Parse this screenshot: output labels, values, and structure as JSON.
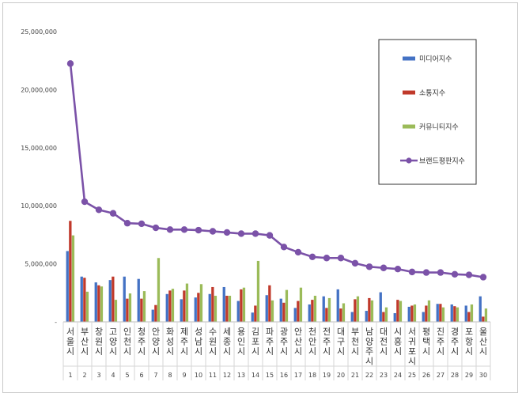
{
  "chart_data": {
    "type": "bar",
    "title": "",
    "xlabel": "",
    "ylabel": "",
    "ylim": [
      0,
      25000000
    ],
    "yticks": [
      "-",
      "5,000,000",
      "10,000,000",
      "15,000,000",
      "20,000,000",
      "25,000,000"
    ],
    "grid": false,
    "legend_position": "top-right",
    "categories": [
      "서울시",
      "부산시",
      "창원시",
      "고양시",
      "인천시",
      "청주시",
      "안양시",
      "화성시",
      "제주시",
      "성남시",
      "수원시",
      "세종시",
      "용인시",
      "김포시",
      "파주시",
      "광주시",
      "안산시",
      "천안시",
      "전주시",
      "대구시",
      "부천시",
      "남양주시",
      "대전시",
      "시흥시",
      "서귀포시",
      "평택시",
      "진주시",
      "경주시",
      "포항시",
      "울산시"
    ],
    "ranks": [
      "1",
      "2",
      "3",
      "4",
      "5",
      "6",
      "7",
      "8",
      "9",
      "10",
      "11",
      "12",
      "13",
      "14",
      "15",
      "16",
      "17",
      "18",
      "19",
      "20",
      "21",
      "22",
      "23",
      "24",
      "25",
      "26",
      "27",
      "28",
      "29",
      "30"
    ],
    "series": [
      {
        "name": "미디어지수",
        "kind": "bar",
        "color": "#4472C4",
        "values": [
          6100000,
          3900000,
          3400000,
          3600000,
          3900000,
          3700000,
          1050000,
          2400000,
          1950000,
          2100000,
          2400000,
          3000000,
          1800000,
          800000,
          2300000,
          2000000,
          1200000,
          1500000,
          2200000,
          2800000,
          850000,
          950000,
          2550000,
          750000,
          1300000,
          850000,
          1550000,
          1500000,
          1400000,
          2200000
        ]
      },
      {
        "name": "소통지수",
        "kind": "bar",
        "color": "#C0392B",
        "values": [
          8700000,
          3800000,
          3150000,
          3900000,
          2000000,
          2000000,
          1450000,
          2700000,
          2700000,
          2500000,
          3000000,
          2250000,
          2800000,
          1400000,
          3150000,
          1650000,
          1800000,
          1900000,
          1200000,
          1150000,
          1950000,
          2050000,
          850000,
          1900000,
          1400000,
          1400000,
          1550000,
          1350000,
          850000,
          450000
        ]
      },
      {
        "name": "커뮤니티지수",
        "kind": "bar",
        "color": "#9BBB59",
        "values": [
          7450000,
          2600000,
          3050000,
          1900000,
          2450000,
          2650000,
          5500000,
          2850000,
          3300000,
          3250000,
          2250000,
          2250000,
          2950000,
          5250000,
          1850000,
          2750000,
          2950000,
          2250000,
          2050000,
          1600000,
          2200000,
          1850000,
          1250000,
          1800000,
          1500000,
          1850000,
          1250000,
          1250000,
          1500000,
          1150000
        ]
      },
      {
        "name": "브랜드평판지수",
        "kind": "line",
        "color": "#7B52A8",
        "values": [
          22250000,
          10350000,
          9650000,
          9350000,
          8500000,
          8450000,
          8100000,
          7950000,
          7950000,
          7900000,
          7800000,
          7700000,
          7600000,
          7600000,
          7450000,
          6450000,
          6000000,
          5600000,
          5500000,
          5500000,
          5050000,
          4750000,
          4650000,
          4550000,
          4300000,
          4250000,
          4250000,
          4100000,
          4050000,
          3850000
        ]
      }
    ]
  }
}
